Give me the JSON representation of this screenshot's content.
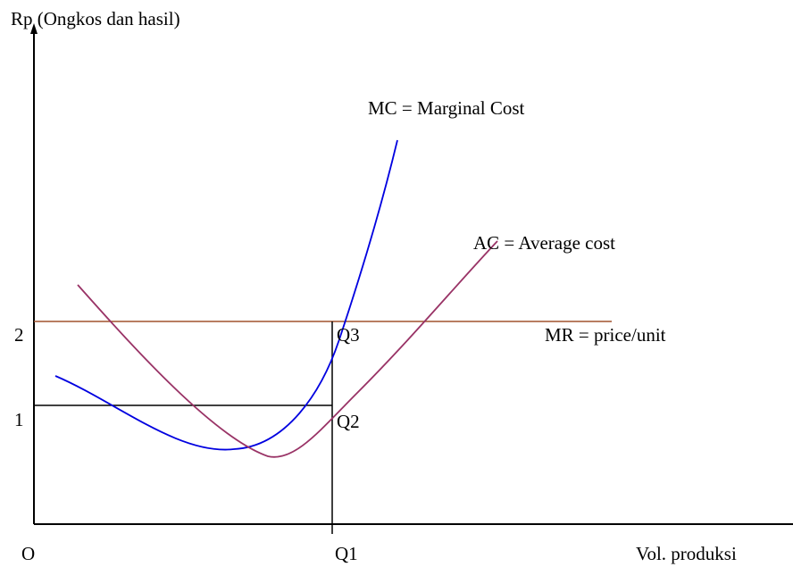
{
  "axis": {
    "y_label": "Rp (Ongkos dan hasil)",
    "x_label": "Vol. produksi",
    "origin": "O",
    "y_ticks": [
      "1",
      "2"
    ],
    "x_ticks": [
      "Q1"
    ]
  },
  "curves": {
    "mc": "MC = Marginal Cost",
    "ac": "AC = Average cost",
    "mr": "MR = price/unit"
  },
  "points": {
    "q3": "Q3",
    "q2": "Q2"
  }
}
